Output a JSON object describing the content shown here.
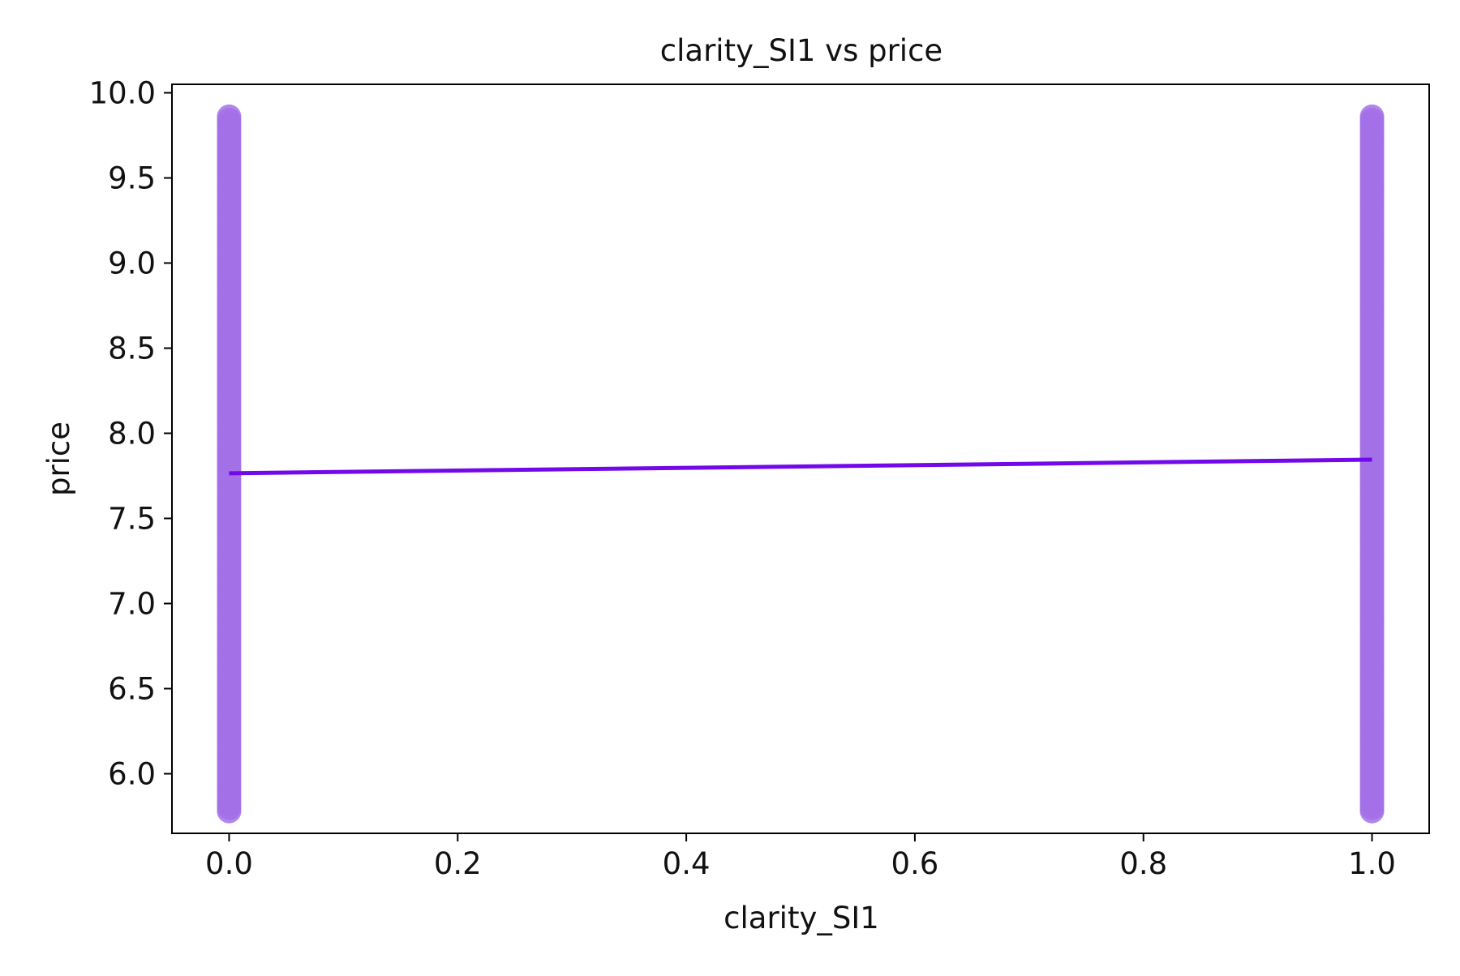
{
  "chart_data": {
    "type": "scatter",
    "title": "clarity_SI1 vs price",
    "xlabel": "clarity_SI1",
    "ylabel": "price",
    "xlim": [
      -0.05,
      1.05
    ],
    "ylim": [
      5.65,
      10.05
    ],
    "x_ticks": [
      0.0,
      0.2,
      0.4,
      0.6,
      0.8,
      1.0
    ],
    "x_tick_labels": [
      "0.0",
      "0.2",
      "0.4",
      "0.6",
      "0.8",
      "1.0"
    ],
    "y_ticks": [
      6.0,
      6.5,
      7.0,
      7.5,
      8.0,
      8.5,
      9.0,
      9.5,
      10.0
    ],
    "y_tick_labels": [
      "6.0",
      "6.5",
      "7.0",
      "7.5",
      "8.0",
      "8.5",
      "9.0",
      "9.5",
      "10.0"
    ],
    "grid": false,
    "legend": "none",
    "series": [
      {
        "kind": "points",
        "color": "#a370e6",
        "groups": [
          {
            "x": 0.0,
            "y_min": 5.78,
            "y_max": 9.86
          },
          {
            "x": 1.0,
            "y_min": 5.78,
            "y_max": 9.86
          }
        ]
      },
      {
        "kind": "regression_line",
        "color": "#7209eb",
        "x": [
          0.0,
          1.0
        ],
        "y": [
          7.765,
          7.845
        ]
      }
    ]
  }
}
